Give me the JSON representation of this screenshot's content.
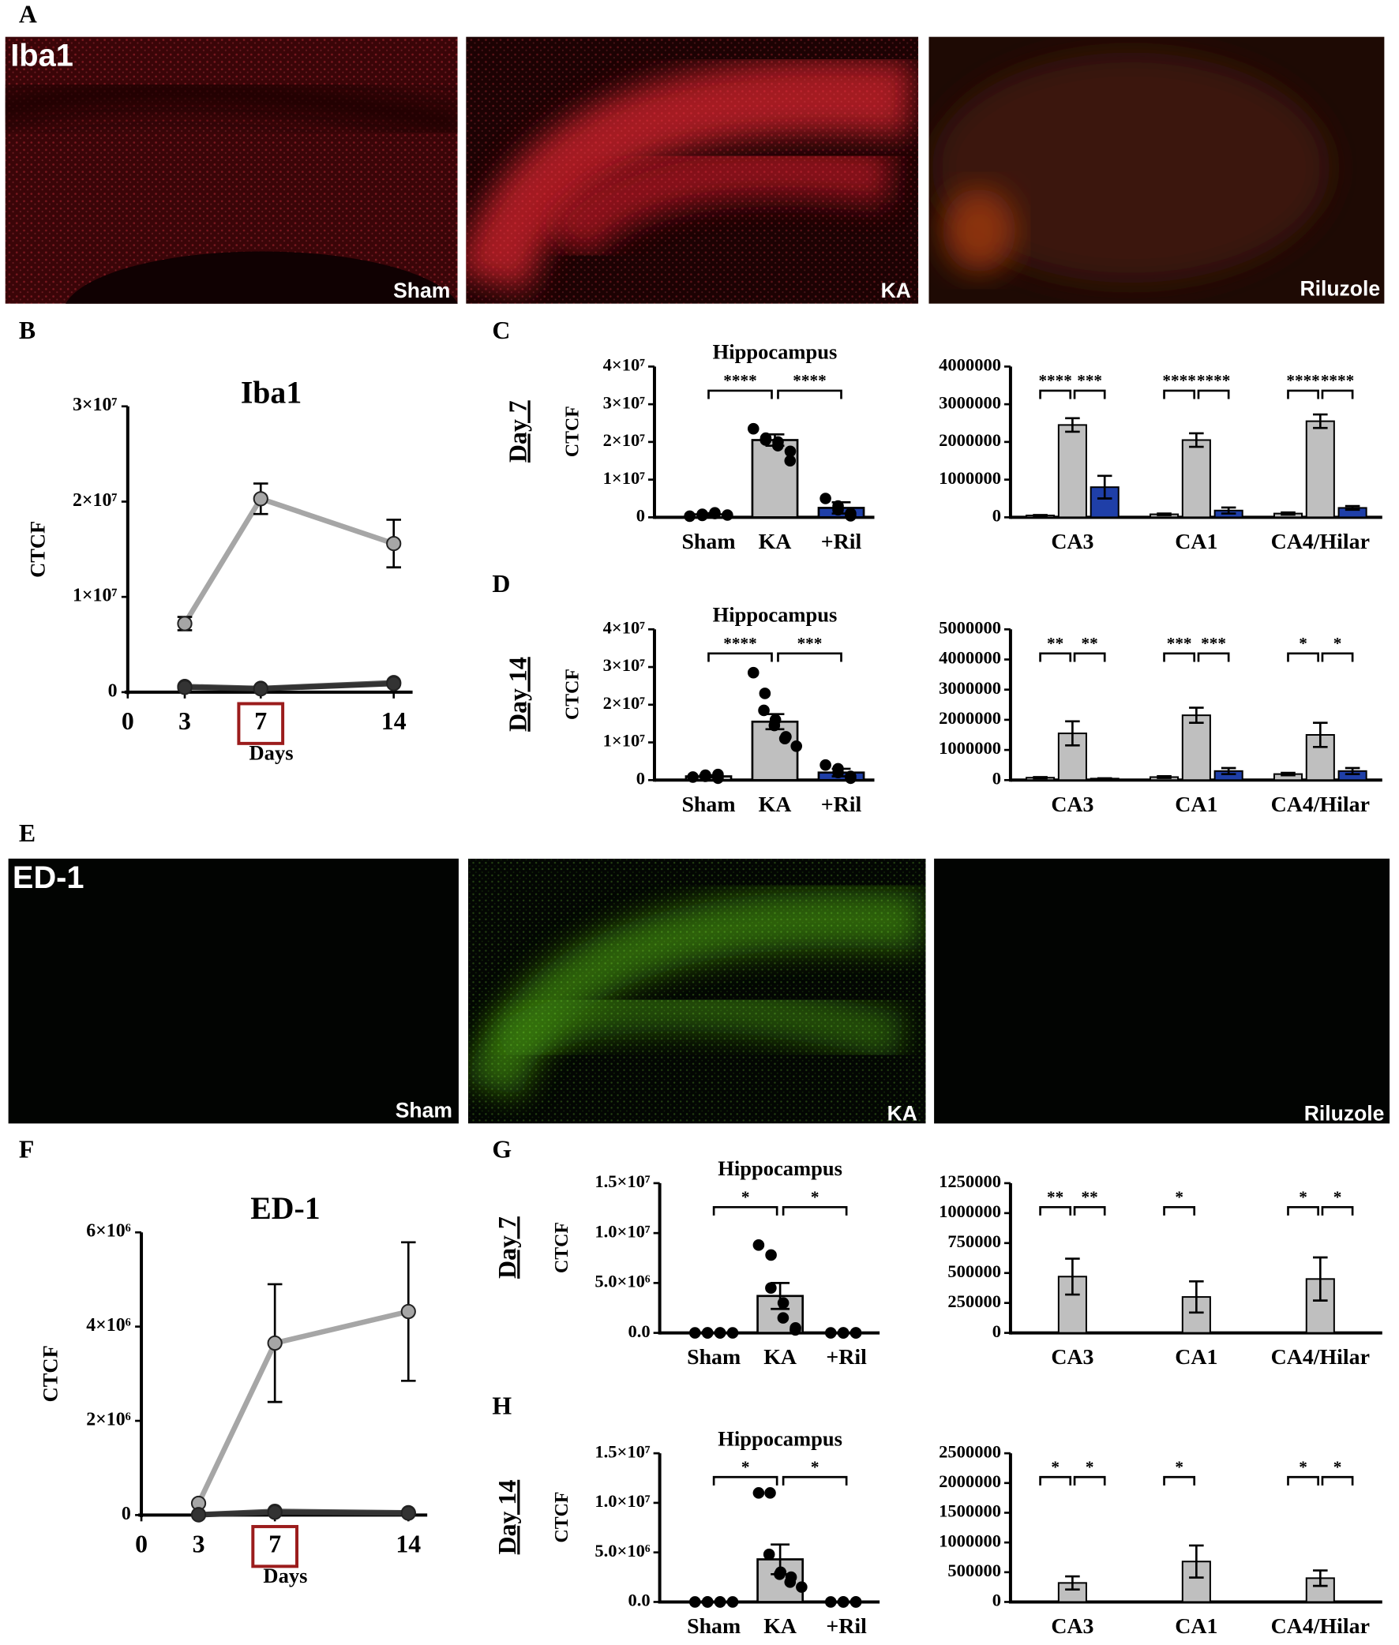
{
  "image_panels": [
    {
      "label": "A",
      "marker": "Iba1",
      "conditions": [
        "Sham",
        "KA",
        "Riluzole"
      ]
    },
    {
      "label": "E",
      "marker": "ED-1",
      "conditions": [
        "Sham",
        "KA",
        "Riluzole"
      ]
    }
  ],
  "chart_data": [
    {
      "type": "line",
      "panel": "B",
      "title": "Iba1",
      "ylabel": "CTCF",
      "xlabel": "Days",
      "x": [
        3,
        7,
        14
      ],
      "xlim": [
        0,
        14
      ],
      "xticks": [
        0,
        3,
        7,
        14
      ],
      "highlighted_tick": 7,
      "ylim": [
        0,
        30000000
      ],
      "yticks": [
        0,
        {
          "value": 10000000,
          "label": "1×10⁷"
        },
        {
          "value": 20000000,
          "label": "2×10⁷"
        },
        {
          "value": 30000000,
          "label": "3×10⁷"
        }
      ],
      "series": [
        {
          "color": "#a6a6a6",
          "values": [
            7200000,
            20300000,
            15600000
          ],
          "errors": [
            700000,
            1600000,
            2500000
          ]
        },
        {
          "color": "#555555",
          "values": [
            600000,
            400000,
            1000000
          ]
        },
        {
          "color": "#333333",
          "values": [
            500000,
            350000,
            900000
          ]
        }
      ]
    },
    {
      "type": "bar",
      "panel": "C",
      "side_label": "Day 7",
      "title": "Hippocampus",
      "ylabel": "CTCF",
      "categories": [
        "Sham",
        "KA",
        "+Ril"
      ],
      "colors": [
        "#bfbfbf",
        "#bfbfbf",
        "#1f3fa8"
      ],
      "values": [
        800000,
        20500000,
        2500000
      ],
      "errors": [
        300000,
        1500000,
        1500000
      ],
      "points": [
        [
          300000,
          500000,
          800000,
          1000000,
          1200000,
          600000
        ],
        [
          23500000,
          21000000,
          20500000,
          20000000,
          19000000,
          17500000,
          15000000
        ],
        [
          5000000,
          3000000,
          2000000,
          1000000,
          400000
        ]
      ],
      "significance": [
        "****",
        "****"
      ],
      "ylim": [
        0,
        40000000
      ],
      "yticks": [
        0,
        {
          "value": 10000000,
          "label": "1×10⁷"
        },
        {
          "value": 20000000,
          "label": "2×10⁷"
        },
        {
          "value": 30000000,
          "label": "3×10⁷"
        },
        {
          "value": 40000000,
          "label": "4×10⁷"
        }
      ]
    },
    {
      "type": "bar",
      "categories": [
        "CA3",
        "CA1",
        "CA4/Hilar"
      ],
      "series": [
        {
          "color": "#bfbfbf",
          "values": [
            50000,
            80000,
            100000
          ],
          "errors": [
            10000,
            20000,
            30000
          ]
        },
        {
          "color": "#bfbfbf",
          "values": [
            2450000,
            2050000,
            2550000
          ],
          "errors": [
            180000,
            180000,
            180000
          ]
        },
        {
          "color": "#1f3fa8",
          "values": [
            800000,
            180000,
            250000
          ],
          "errors": [
            300000,
            80000,
            50000
          ]
        }
      ],
      "significance": [
        [
          "****",
          "***"
        ],
        [
          "****",
          "****"
        ],
        [
          "****",
          "****"
        ]
      ],
      "ylim": [
        0,
        4000000
      ],
      "yticks": [
        0,
        1000000,
        2000000,
        3000000,
        4000000
      ]
    },
    {
      "type": "bar",
      "panel": "D",
      "side_label": "Day 14",
      "title": "Hippocampus",
      "ylabel": "CTCF",
      "categories": [
        "Sham",
        "KA",
        "+Ril"
      ],
      "colors": [
        "#bfbfbf",
        "#bfbfbf",
        "#1f3fa8"
      ],
      "values": [
        1000000,
        15500000,
        2000000
      ],
      "errors": [
        300000,
        2000000,
        1000000
      ],
      "points": [
        [
          800000,
          1000000,
          1300000,
          500000,
          1500000
        ],
        [
          28500000,
          23000000,
          18500000,
          16000000,
          14500000,
          11500000,
          11000000,
          9000000
        ],
        [
          4000000,
          3000000,
          2000000,
          1000000,
          500000
        ]
      ],
      "significance": [
        "****",
        "***"
      ],
      "ylim": [
        0,
        40000000
      ],
      "yticks": [
        0,
        {
          "value": 10000000,
          "label": "1×10⁷"
        },
        {
          "value": 20000000,
          "label": "2×10⁷"
        },
        {
          "value": 30000000,
          "label": "3×10⁷"
        },
        {
          "value": 40000000,
          "label": "4×10⁷"
        }
      ]
    },
    {
      "type": "bar",
      "categories": [
        "CA3",
        "CA1",
        "CA4/Hilar"
      ],
      "series": [
        {
          "color": "#bfbfbf",
          "values": [
            80000,
            100000,
            200000
          ],
          "errors": [
            20000,
            30000,
            40000
          ]
        },
        {
          "color": "#bfbfbf",
          "values": [
            1550000,
            2150000,
            1500000
          ],
          "errors": [
            400000,
            250000,
            400000
          ]
        },
        {
          "color": "#1f3fa8",
          "values": [
            50000,
            300000,
            300000
          ],
          "errors": [
            10000,
            100000,
            100000
          ]
        }
      ],
      "significance": [
        [
          "**",
          "**"
        ],
        [
          "***",
          "***"
        ],
        [
          "*",
          "*"
        ]
      ],
      "ylim": [
        0,
        5000000
      ],
      "yticks": [
        0,
        1000000,
        2000000,
        3000000,
        4000000,
        5000000
      ]
    },
    {
      "type": "line",
      "panel": "F",
      "title": "ED-1",
      "ylabel": "CTCF",
      "xlabel": "Days",
      "x": [
        3,
        7,
        14
      ],
      "xlim": [
        0,
        14
      ],
      "xticks": [
        0,
        3,
        7,
        14
      ],
      "highlighted_tick": 7,
      "ylim": [
        0,
        6000000
      ],
      "yticks": [
        0,
        {
          "value": 2000000,
          "label": "2×10⁶"
        },
        {
          "value": 4000000,
          "label": "4×10⁶"
        },
        {
          "value": 6000000,
          "label": "6×10⁶"
        }
      ],
      "series": [
        {
          "color": "#a6a6a6",
          "values": [
            250000,
            3650000,
            4320000
          ],
          "errors": [
            0,
            1250000,
            1470000
          ]
        },
        {
          "color": "#555555",
          "values": [
            10000,
            80000,
            50000
          ]
        },
        {
          "color": "#333333",
          "values": [
            5000,
            60000,
            40000
          ]
        }
      ]
    },
    {
      "type": "bar",
      "panel": "G",
      "side_label": "Day 7",
      "title": "Hippocampus",
      "ylabel": "CTCF",
      "categories": [
        "Sham",
        "KA",
        "+Ril"
      ],
      "colors": [
        "#bfbfbf",
        "#bfbfbf",
        "#bfbfbf"
      ],
      "values": [
        0,
        3700000,
        0
      ],
      "errors": [
        0,
        1300000,
        0
      ],
      "points": [
        [
          0,
          0,
          0,
          0,
          0,
          0
        ],
        [
          8800000,
          7800000,
          4500000,
          3000000,
          1500000,
          500000,
          300000
        ],
        [
          0,
          0,
          0,
          0,
          0
        ]
      ],
      "significance": [
        "*",
        "*"
      ],
      "ylim": [
        0,
        15000000
      ],
      "yticks": [
        {
          "value": 0,
          "label": "0.0"
        },
        {
          "value": 5000000,
          "label": "5.0×10⁶"
        },
        {
          "value": 10000000,
          "label": "1.0×10⁷"
        },
        {
          "value": 15000000,
          "label": "1.5×10⁷"
        }
      ]
    },
    {
      "type": "bar",
      "categories": [
        "CA3",
        "CA1",
        "CA4/Hilar"
      ],
      "series": [
        {
          "color": "#bfbfbf",
          "values": [
            0,
            0,
            0
          ],
          "errors": [
            0,
            0,
            0
          ]
        },
        {
          "color": "#bfbfbf",
          "values": [
            470000,
            300000,
            450000
          ],
          "errors": [
            150000,
            130000,
            180000
          ]
        },
        {
          "color": "#bfbfbf",
          "values": [
            0,
            0,
            0
          ],
          "errors": [
            0,
            0,
            0
          ]
        }
      ],
      "significance": [
        [
          "**",
          "**"
        ],
        [
          "*"
        ],
        [
          "*",
          "*"
        ]
      ],
      "ylim": [
        0,
        1250000
      ],
      "yticks": [
        0,
        250000,
        500000,
        750000,
        1000000,
        1250000
      ]
    },
    {
      "type": "bar",
      "panel": "H",
      "side_label": "Day 14",
      "title": "Hippocampus",
      "ylabel": "CTCF",
      "categories": [
        "Sham",
        "KA",
        "+Ril"
      ],
      "colors": [
        "#bfbfbf",
        "#bfbfbf",
        "#bfbfbf"
      ],
      "values": [
        0,
        4300000,
        0
      ],
      "errors": [
        0,
        1500000,
        0
      ],
      "points": [
        [
          0,
          0,
          0,
          0,
          0,
          0
        ],
        [
          11000000,
          11000000,
          4800000,
          3000000,
          2800000,
          2500000,
          2000000,
          1500000
        ],
        [
          0,
          0,
          0,
          0,
          0
        ]
      ],
      "significance": [
        "*",
        "*"
      ],
      "ylim": [
        0,
        15000000
      ],
      "yticks": [
        {
          "value": 0,
          "label": "0.0"
        },
        {
          "value": 5000000,
          "label": "5.0×10⁶"
        },
        {
          "value": 10000000,
          "label": "1.0×10⁷"
        },
        {
          "value": 15000000,
          "label": "1.5×10⁷"
        }
      ]
    },
    {
      "type": "bar",
      "categories": [
        "CA3",
        "CA1",
        "CA4/Hilar"
      ],
      "series": [
        {
          "color": "#bfbfbf",
          "values": [
            0,
            0,
            0
          ],
          "errors": [
            0,
            0,
            0
          ]
        },
        {
          "color": "#bfbfbf",
          "values": [
            320000,
            680000,
            400000
          ],
          "errors": [
            110000,
            270000,
            130000
          ]
        },
        {
          "color": "#bfbfbf",
          "values": [
            0,
            0,
            0
          ],
          "errors": [
            0,
            0,
            0
          ]
        }
      ],
      "significance": [
        [
          "*",
          "*"
        ],
        [
          "*"
        ],
        [
          "*",
          "*"
        ]
      ],
      "ylim": [
        0,
        2500000
      ],
      "yticks": [
        0,
        500000,
        1000000,
        1500000,
        2000000,
        2500000
      ]
    }
  ]
}
